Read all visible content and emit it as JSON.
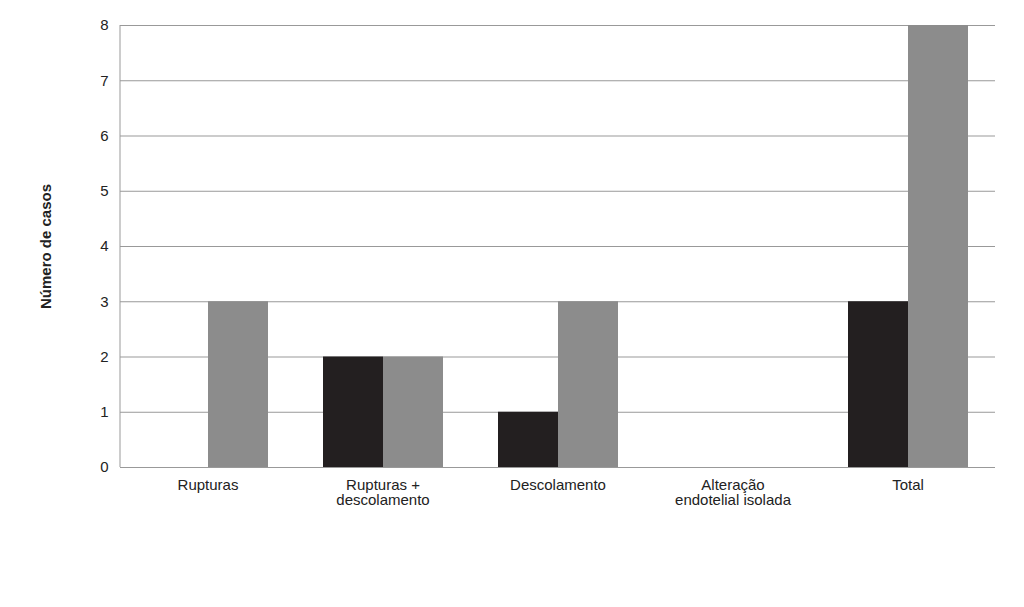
{
  "chart_data": {
    "type": "bar",
    "y_label": "Número de casos",
    "categories": [
      "Rupturas",
      "Rupturas + descolamento",
      "Descolamento",
      "Alteração endotelial isolada",
      "Total"
    ],
    "series": [
      {
        "color": "#231f20",
        "values": [
          0,
          2,
          1,
          0,
          3
        ]
      },
      {
        "color": "#8c8c8c",
        "values": [
          3,
          2,
          3,
          0,
          8
        ]
      }
    ],
    "ylim": [
      0,
      8
    ],
    "yticks": [
      0,
      1,
      2,
      3,
      4,
      5,
      6,
      7,
      8
    ],
    "grid": true
  }
}
